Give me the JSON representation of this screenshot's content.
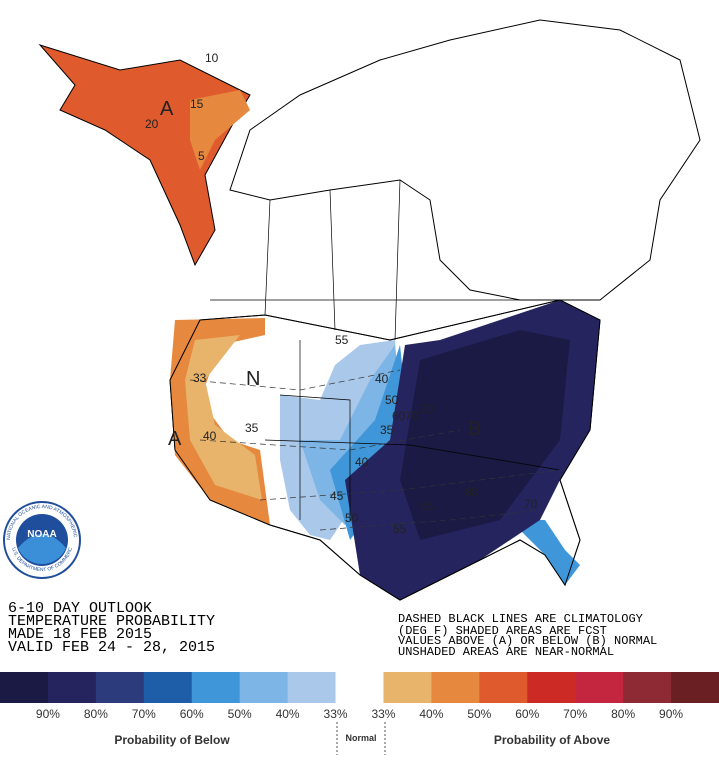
{
  "header": {
    "lines": [
      "6-10 DAY OUTLOOK",
      "TEMPERATURE PROBABILITY",
      "MADE  18 FEB 2015",
      "VALID  FEB 24 - 28, 2015"
    ]
  },
  "notes": [
    "DASHED BLACK LINES ARE CLIMATOLOGY",
    "(DEG F) SHADED AREAS ARE FCST",
    "VALUES ABOVE (A) OR BELOW (B) NORMAL",
    "UNSHADED AREAS ARE NEAR-NORMAL"
  ],
  "logo": {
    "name": "NOAA",
    "ring_top": "NATIONAL OCEANIC AND ATMOSPHERIC ADMINISTRATION",
    "ring_bottom": "U.S. DEPARTMENT OF COMMERCE"
  },
  "map_labels": [
    "A",
    "10",
    "15",
    "20",
    "5",
    "A",
    "N",
    "33",
    "40",
    "35",
    "B",
    "55",
    "40",
    "50",
    "60",
    "70",
    "30",
    "35",
    "40",
    "45",
    "50",
    "55",
    "65",
    "80",
    "70"
  ],
  "legend": {
    "colors": [
      "#1b1a45",
      "#26245f",
      "#2c3b7b",
      "#1e5ea8",
      "#3f96d8",
      "#7db5e6",
      "#a9c8ea",
      "#ffffff",
      "#e8b36a",
      "#e6893f",
      "#df5a2c",
      "#cc2b25",
      "#c4263f",
      "#8e2a33",
      "#6a1f22"
    ],
    "labels": [
      "90%",
      "80%",
      "70%",
      "60%",
      "50%",
      "40%",
      "33%",
      "33%",
      "40%",
      "50%",
      "60%",
      "70%",
      "80%",
      "90%"
    ],
    "below": "Probability of Below",
    "normal": "Normal",
    "above": "Probability of Above"
  }
}
